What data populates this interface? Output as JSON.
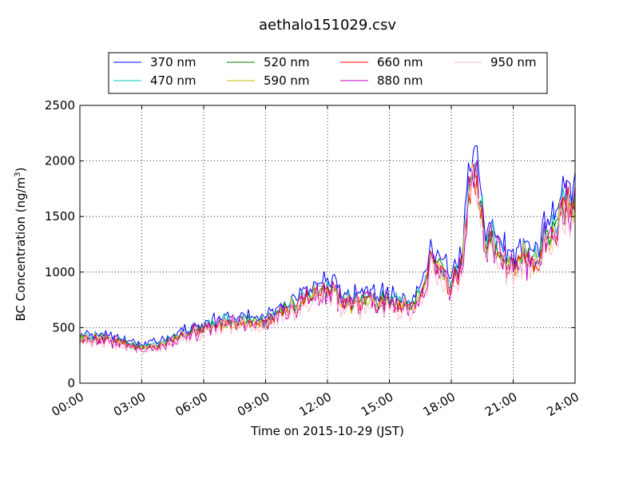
{
  "chart_data": {
    "type": "line",
    "title": "aethalo151029.csv",
    "xlabel": "Time on 2015-10-29 (JST)",
    "ylabel_main": "BC Concentration (ng/m",
    "ylabel_sup": "3",
    "ylabel_close": ")",
    "xlim": [
      "00:00",
      "24:00"
    ],
    "ylim": [
      0,
      2500
    ],
    "grid": true,
    "legend_position": "top-center",
    "xticks": [
      "00:00",
      "03:00",
      "06:00",
      "09:00",
      "12:00",
      "15:00",
      "18:00",
      "21:00",
      "24:00"
    ],
    "yticks": [
      "0",
      "500",
      "1000",
      "1500",
      "2000",
      "2500"
    ],
    "series": [
      {
        "name": "370 nm",
        "color": "#0000ff",
        "scale": 1.06,
        "noise": 0.06,
        "seed": 11
      },
      {
        "name": "470 nm",
        "color": "#00bfbf",
        "scale": 1.0,
        "noise": 0.06,
        "seed": 23
      },
      {
        "name": "520 nm",
        "color": "#008000",
        "scale": 0.97,
        "noise": 0.07,
        "seed": 37
      },
      {
        "name": "590 nm",
        "color": "#bfbf00",
        "scale": 0.95,
        "noise": 0.07,
        "seed": 41
      },
      {
        "name": "660 nm",
        "color": "#ff0000",
        "scale": 0.95,
        "noise": 0.08,
        "seed": 53
      },
      {
        "name": "880 nm",
        "color": "#bf00bf",
        "scale": 0.94,
        "noise": 0.13,
        "seed": 67
      },
      {
        "name": "950 nm",
        "color": "#ffc0cb",
        "scale": 0.9,
        "noise": 0.12,
        "seed": 79
      }
    ],
    "base_profile_hours": [
      0,
      1,
      2,
      3,
      4,
      5,
      6,
      7,
      8,
      9,
      10,
      11,
      12,
      13,
      14,
      15,
      16,
      16.5,
      17,
      17.5,
      18,
      18.5,
      19,
      19.3,
      19.7,
      20,
      20.5,
      21,
      21.5,
      22,
      22.5,
      23,
      23.5,
      24
    ],
    "base_profile_values": [
      420,
      430,
      380,
      330,
      380,
      460,
      510,
      560,
      570,
      580,
      700,
      800,
      900,
      750,
      780,
      760,
      720,
      800,
      1150,
      1100,
      900,
      1100,
      2000,
      1800,
      1250,
      1350,
      1150,
      1100,
      1250,
      1100,
      1300,
      1450,
      1650,
      1700
    ]
  }
}
